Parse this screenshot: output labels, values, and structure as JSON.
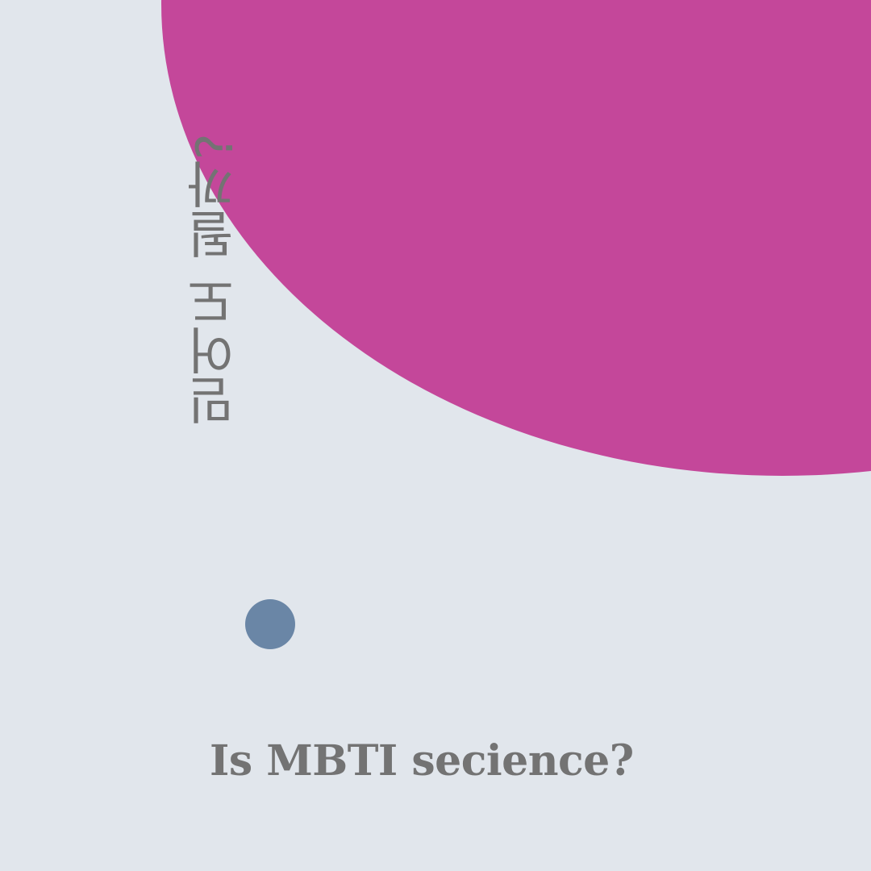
{
  "colors": {
    "background": "#e1e6ec",
    "big_circle": "#c4479a",
    "small_dot": "#6a86a6",
    "text": "#737373"
  },
  "vertical_text": "믿어도 될까?",
  "headline": "Is MBTI secience?"
}
